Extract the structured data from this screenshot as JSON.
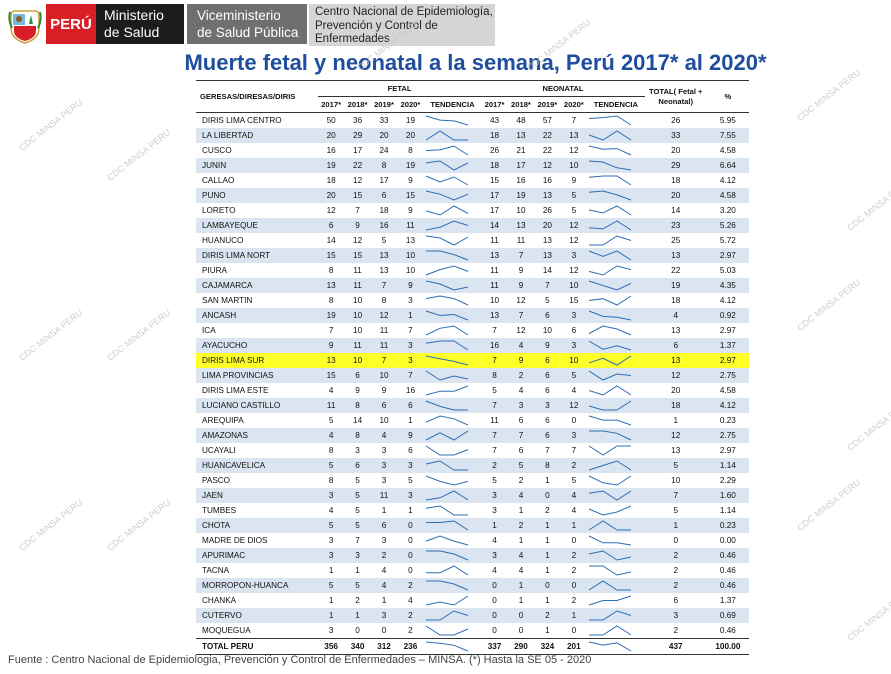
{
  "header": {
    "peru": "PERÚ",
    "ministerio_line1": "Ministerio",
    "ministerio_line2": "de Salud",
    "vice_line1": "Viceministerio",
    "vice_line2": "de Salud Pública",
    "cdc_line1": "Centro Nacional de Epidemiología,",
    "cdc_line2": "Prevención y Control de",
    "cdc_line3": "Enfermedades"
  },
  "title": "Muerte fetal y neonatal a la semana, Perú 2017*  al 2020*",
  "watermark": "CDC MINSA PERU",
  "table": {
    "col_region": "GERESAS/DIRESAS/DIRIS",
    "group_fetal": "FETAL",
    "group_neonatal": "NEONATAL",
    "col_total": "TOTAL( Fetal + Neonatal)",
    "col_pct": "%",
    "years": [
      "2017*",
      "2018*",
      "2019*",
      "2020*"
    ],
    "col_trend": "TENDENCIA",
    "rows": [
      {
        "name": "DIRIS LIMA CENTRO",
        "fetal": [
          50,
          36,
          33,
          19
        ],
        "neo": [
          43,
          48,
          57,
          7
        ],
        "total": "26",
        "pct": "5.95"
      },
      {
        "name": "LA LIBERTAD",
        "fetal": [
          20,
          29,
          20,
          20
        ],
        "neo": [
          18,
          13,
          22,
          13
        ],
        "total": "33",
        "pct": "7.55"
      },
      {
        "name": "CUSCO",
        "fetal": [
          16,
          17,
          24,
          8
        ],
        "neo": [
          26,
          21,
          22,
          12
        ],
        "total": "20",
        "pct": "4.58"
      },
      {
        "name": "JUNIN",
        "fetal": [
          19,
          22,
          8,
          19
        ],
        "neo": [
          18,
          17,
          12,
          10
        ],
        "total": "29",
        "pct": "6.64"
      },
      {
        "name": "CALLAO",
        "fetal": [
          18,
          12,
          17,
          9
        ],
        "neo": [
          15,
          16,
          16,
          9
        ],
        "total": "18",
        "pct": "4.12"
      },
      {
        "name": "PUNO",
        "fetal": [
          20,
          15,
          6,
          15
        ],
        "neo": [
          17,
          19,
          13,
          5
        ],
        "total": "20",
        "pct": "4.58"
      },
      {
        "name": "LORETO",
        "fetal": [
          12,
          7,
          18,
          9
        ],
        "neo": [
          17,
          10,
          26,
          5
        ],
        "total": "14",
        "pct": "3.20"
      },
      {
        "name": "LAMBAYEQUE",
        "fetal": [
          6,
          9,
          16,
          11
        ],
        "neo": [
          14,
          13,
          20,
          12
        ],
        "total": "23",
        "pct": "5.26"
      },
      {
        "name": "HUANUCO",
        "fetal": [
          14,
          12,
          5,
          13
        ],
        "neo": [
          11,
          11,
          13,
          12
        ],
        "total": "25",
        "pct": "5.72"
      },
      {
        "name": "DIRIS LIMA NORT",
        "fetal": [
          15,
          15,
          13,
          10
        ],
        "neo": [
          13,
          7,
          13,
          3
        ],
        "total": "13",
        "pct": "2.97"
      },
      {
        "name": "PIURA",
        "fetal": [
          8,
          11,
          13,
          10
        ],
        "neo": [
          11,
          9,
          14,
          12
        ],
        "total": "22",
        "pct": "5.03"
      },
      {
        "name": "CAJAMARCA",
        "fetal": [
          13,
          11,
          7,
          9
        ],
        "neo": [
          11,
          9,
          7,
          10
        ],
        "total": "19",
        "pct": "4.35"
      },
      {
        "name": "SAN MARTIN",
        "fetal": [
          8,
          10,
          8,
          3
        ],
        "neo": [
          10,
          12,
          5,
          15
        ],
        "total": "18",
        "pct": "4.12"
      },
      {
        "name": "ANCASH",
        "fetal": [
          19,
          10,
          12,
          1
        ],
        "neo": [
          13,
          7,
          6,
          3
        ],
        "total": "4",
        "pct": "0.92"
      },
      {
        "name": "ICA",
        "fetal": [
          7,
          10,
          11,
          7
        ],
        "neo": [
          7,
          12,
          10,
          6
        ],
        "total": "13",
        "pct": "2.97"
      },
      {
        "name": "AYACUCHO",
        "fetal": [
          9,
          11,
          11,
          3
        ],
        "neo": [
          16,
          4,
          9,
          3
        ],
        "total": "6",
        "pct": "1.37"
      },
      {
        "name": "DIRIS LIMA SUR",
        "fetal": [
          13,
          10,
          7,
          3
        ],
        "neo": [
          7,
          9,
          6,
          10
        ],
        "total": "13",
        "pct": "2.97",
        "highlight": true
      },
      {
        "name": "LIMA PROVINCIAS",
        "fetal": [
          15,
          6,
          10,
          7
        ],
        "neo": [
          8,
          2,
          6,
          5
        ],
        "total": "12",
        "pct": "2.75"
      },
      {
        "name": "DIRIS LIMA ESTE",
        "fetal": [
          4,
          9,
          9,
          16
        ],
        "neo": [
          5,
          4,
          6,
          4
        ],
        "total": "20",
        "pct": "4.58"
      },
      {
        "name": "LUCIANO CASTILLO",
        "fetal": [
          11,
          8,
          6,
          6
        ],
        "neo": [
          7,
          3,
          3,
          12
        ],
        "total": "18",
        "pct": "4.12"
      },
      {
        "name": "AREQUIPA",
        "fetal": [
          5,
          14,
          10,
          1
        ],
        "neo": [
          11,
          6,
          6,
          0
        ],
        "total": "1",
        "pct": "0.23"
      },
      {
        "name": "AMAZONAS",
        "fetal": [
          4,
          8,
          4,
          9
        ],
        "neo": [
          7,
          7,
          6,
          3
        ],
        "total": "12",
        "pct": "2.75"
      },
      {
        "name": "UCAYALI",
        "fetal": [
          8,
          3,
          3,
          6
        ],
        "neo": [
          7,
          6,
          7,
          7
        ],
        "total": "13",
        "pct": "2.97"
      },
      {
        "name": "HUANCAVELICA",
        "fetal": [
          5,
          6,
          3,
          3
        ],
        "neo": [
          2,
          5,
          8,
          2
        ],
        "total": "5",
        "pct": "1.14"
      },
      {
        "name": "PASCO",
        "fetal": [
          8,
          5,
          3,
          5
        ],
        "neo": [
          5,
          2,
          1,
          5
        ],
        "total": "10",
        "pct": "2.29"
      },
      {
        "name": "JAEN",
        "fetal": [
          3,
          5,
          11,
          3
        ],
        "neo": [
          3,
          4,
          0,
          4
        ],
        "total": "7",
        "pct": "1.60"
      },
      {
        "name": "TUMBES",
        "fetal": [
          4,
          5,
          1,
          1
        ],
        "neo": [
          3,
          1,
          2,
          4
        ],
        "total": "5",
        "pct": "1.14"
      },
      {
        "name": "CHOTA",
        "fetal": [
          5,
          5,
          6,
          0
        ],
        "neo": [
          1,
          2,
          1,
          1
        ],
        "total": "1",
        "pct": "0.23"
      },
      {
        "name": "MADRE DE DIOS",
        "fetal": [
          3,
          7,
          3,
          0
        ],
        "neo": [
          4,
          1,
          1,
          0
        ],
        "total": "0",
        "pct": "0.00"
      },
      {
        "name": "APURIMAC",
        "fetal": [
          3,
          3,
          2,
          0
        ],
        "neo": [
          3,
          4,
          1,
          2
        ],
        "total": "2",
        "pct": "0.46"
      },
      {
        "name": "TACNA",
        "fetal": [
          1,
          1,
          4,
          0
        ],
        "neo": [
          4,
          4,
          1,
          2
        ],
        "total": "2",
        "pct": "0.46"
      },
      {
        "name": "MORROPON-HUANCA",
        "fetal": [
          5,
          5,
          4,
          2
        ],
        "neo": [
          0,
          1,
          0,
          0
        ],
        "total": "2",
        "pct": "0.46"
      },
      {
        "name": "CHANKA",
        "fetal": [
          1,
          2,
          1,
          4
        ],
        "neo": [
          0,
          1,
          1,
          2
        ],
        "total": "6",
        "pct": "1.37"
      },
      {
        "name": "CUTERVO",
        "fetal": [
          1,
          1,
          3,
          2
        ],
        "neo": [
          0,
          0,
          2,
          1
        ],
        "total": "3",
        "pct": "0.69"
      },
      {
        "name": "MOQUEGUA",
        "fetal": [
          3,
          0,
          0,
          2
        ],
        "neo": [
          0,
          0,
          1,
          0
        ],
        "total": "2",
        "pct": "0.46"
      }
    ],
    "total_row": {
      "name": "TOTAL PERU",
      "fetal": [
        356,
        340,
        312,
        236
      ],
      "neo": [
        337,
        290,
        324,
        201
      ],
      "total": "437",
      "pct": "100.00"
    }
  },
  "footer": "Fuente : Centro Nacional de Epidemiologia, Prevención y Control de Enfermedades – MINSA.  (*) Hasta la SE 05 - 2020",
  "colors": {
    "title": "#1f4e9e",
    "band": "#dbe5f1",
    "highlight": "#ffff2a",
    "spark": "#2e6db4"
  }
}
